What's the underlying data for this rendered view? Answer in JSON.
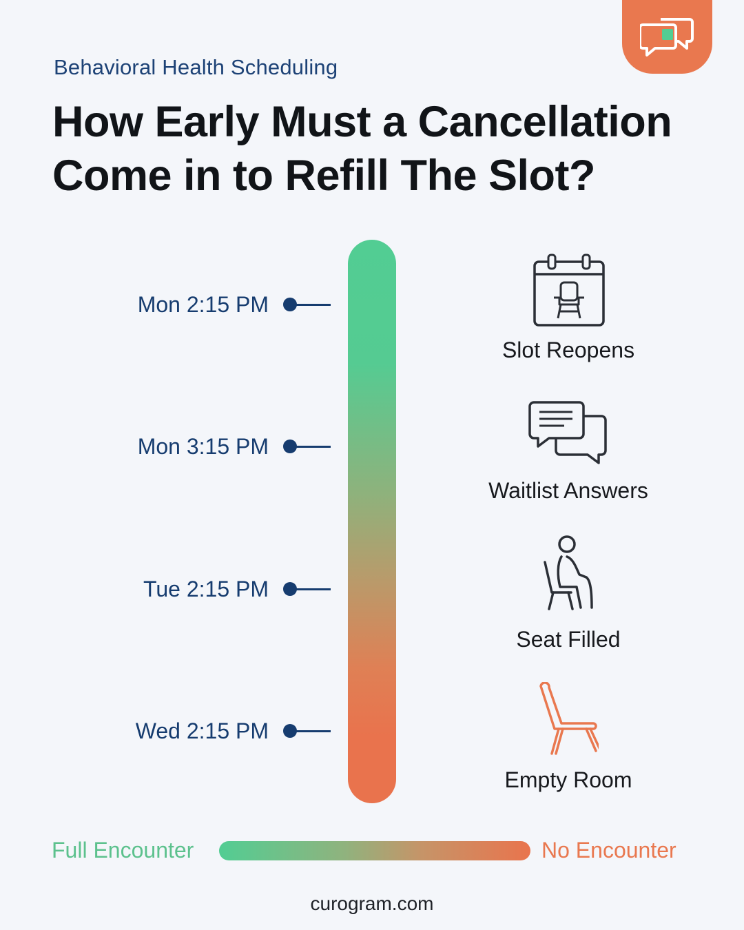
{
  "header": {
    "eyebrow": "Behavioral Health Scheduling",
    "title": "How Early Must a Cancellation Come in to Refill The Slot?",
    "logo_icon": "chat-bubbles-icon"
  },
  "timeline": {
    "ticks": [
      {
        "label": "Mon 2:15 PM"
      },
      {
        "label": "Mon 3:15 PM"
      },
      {
        "label": "Tue 2:15 PM"
      },
      {
        "label": "Wed 2:15 PM"
      }
    ]
  },
  "stages": [
    {
      "label": "Slot Reopens",
      "icon": "calendar-chair-icon"
    },
    {
      "label": "Waitlist Answers",
      "icon": "chat-bubbles-icon"
    },
    {
      "label": "Seat Filled",
      "icon": "seated-person-icon"
    },
    {
      "label": "Empty Room",
      "icon": "empty-chair-icon"
    }
  ],
  "legend": {
    "left_label": "Full Encounter",
    "right_label": "No Encounter"
  },
  "colors": {
    "green": "#52cd93",
    "orange": "#e9784f",
    "navy": "#163c6f"
  },
  "footer": {
    "site": "curogram.com"
  }
}
